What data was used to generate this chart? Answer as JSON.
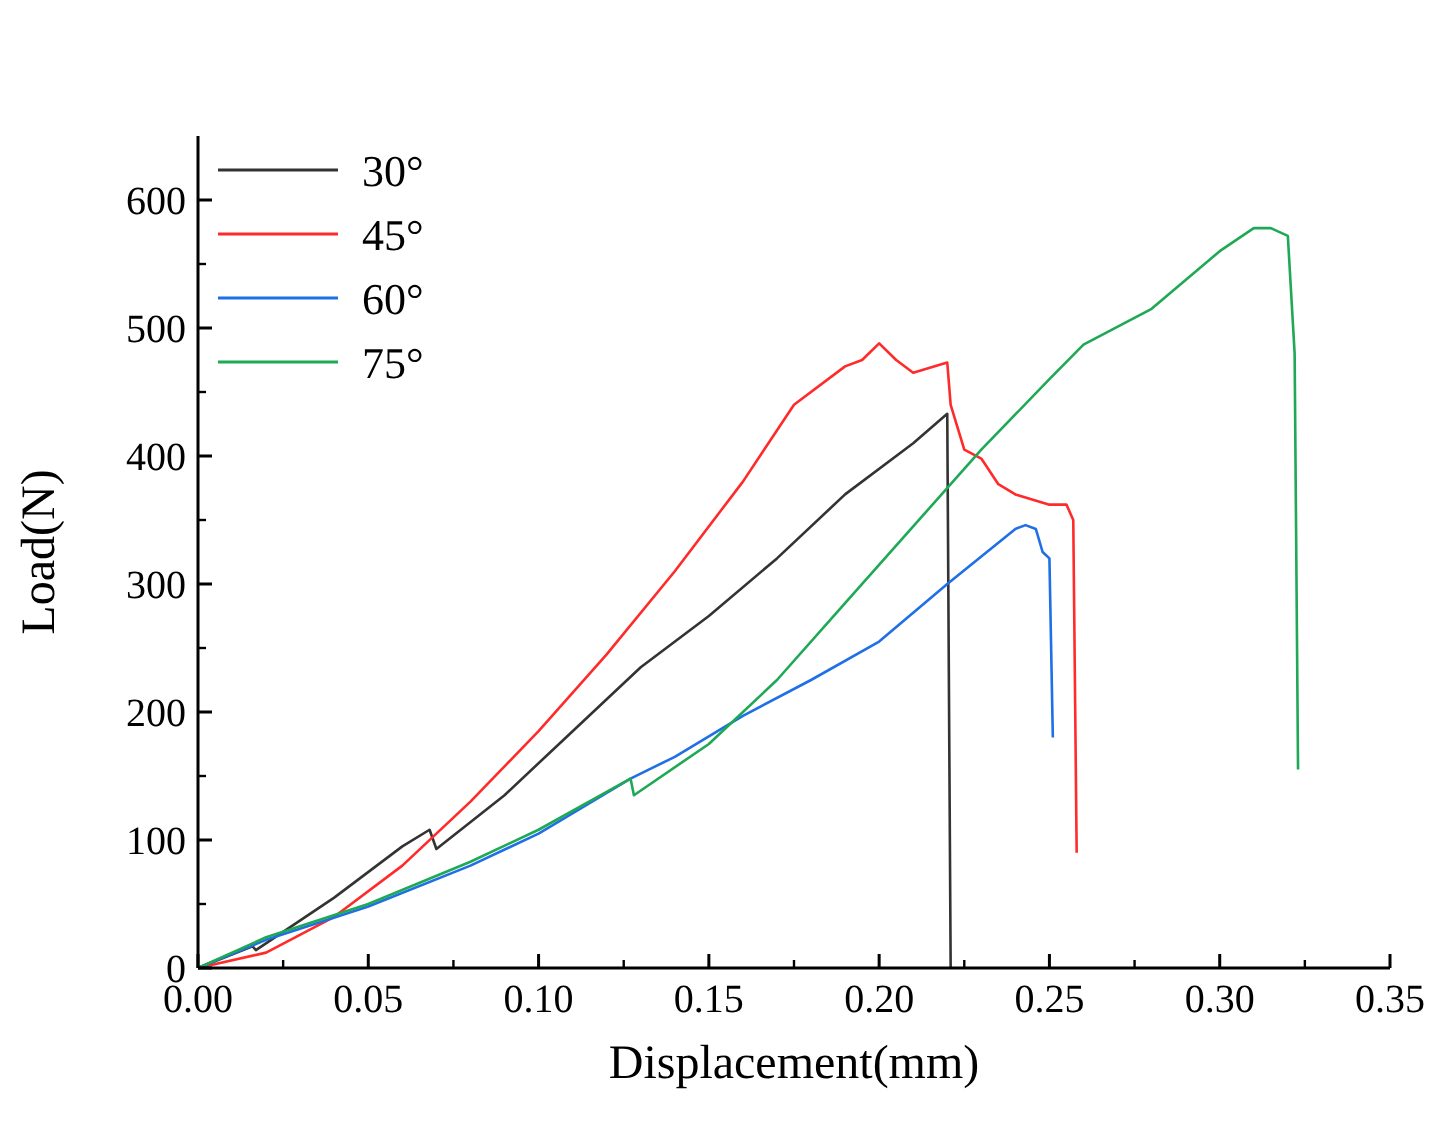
{
  "chart_data": {
    "type": "line",
    "xlabel": "Displacement(mm)",
    "ylabel": "Load(N)",
    "xlim": [
      0,
      0.35
    ],
    "ylim": [
      0,
      650
    ],
    "xticks": [
      {
        "value": 0,
        "label": "0.00"
      },
      {
        "value": 0.05,
        "label": "0.05"
      },
      {
        "value": 0.1,
        "label": "0.10"
      },
      {
        "value": 0.15,
        "label": "0.15"
      },
      {
        "value": 0.2,
        "label": "0.20"
      },
      {
        "value": 0.25,
        "label": "0.25"
      },
      {
        "value": 0.3,
        "label": "0.30"
      },
      {
        "value": 0.35,
        "label": "0.35"
      }
    ],
    "yticks": [
      0,
      100,
      200,
      300,
      400,
      500,
      600
    ],
    "grid": false,
    "legend": "top left",
    "marker": "none",
    "line_style": "solid",
    "series": [
      {
        "name": "30°",
        "color": "#333333",
        "x": [
          0,
          0.016,
          0.017,
          0.04,
          0.06,
          0.068,
          0.07,
          0.09,
          0.11,
          0.13,
          0.15,
          0.17,
          0.19,
          0.21,
          0.22,
          0.221
        ],
        "values": [
          0,
          17,
          14,
          55,
          95,
          108,
          93,
          135,
          185,
          235,
          275,
          320,
          370,
          410,
          433,
          0
        ]
      },
      {
        "name": "45°",
        "color": "#ff2a2a",
        "x": [
          0,
          0.02,
          0.04,
          0.06,
          0.08,
          0.1,
          0.12,
          0.14,
          0.16,
          0.175,
          0.19,
          0.195,
          0.2,
          0.205,
          0.21,
          0.22,
          0.221,
          0.225,
          0.23,
          0.235,
          0.24,
          0.25,
          0.255,
          0.257,
          0.258
        ],
        "values": [
          0,
          12,
          40,
          80,
          130,
          185,
          245,
          310,
          380,
          440,
          470,
          475,
          488,
          475,
          465,
          473,
          440,
          405,
          398,
          378,
          370,
          362,
          362,
          350,
          90
        ]
      },
      {
        "name": "60°",
        "color": "#1f6fe6",
        "x": [
          0,
          0.02,
          0.05,
          0.08,
          0.1,
          0.127,
          0.14,
          0.16,
          0.18,
          0.2,
          0.22,
          0.24,
          0.243,
          0.246,
          0.248,
          0.25,
          0.251
        ],
        "values": [
          0,
          22,
          48,
          80,
          105,
          148,
          165,
          197,
          225,
          255,
          300,
          343,
          346,
          343,
          325,
          320,
          180
        ]
      },
      {
        "name": "75°",
        "color": "#1fa855",
        "x": [
          0,
          0.02,
          0.05,
          0.08,
          0.1,
          0.127,
          0.128,
          0.15,
          0.17,
          0.19,
          0.21,
          0.23,
          0.25,
          0.26,
          0.28,
          0.3,
          0.31,
          0.315,
          0.32,
          0.322,
          0.323
        ],
        "values": [
          0,
          24,
          50,
          83,
          108,
          148,
          135,
          175,
          225,
          285,
          345,
          405,
          460,
          487,
          515,
          560,
          578,
          578,
          572,
          480,
          155
        ]
      }
    ]
  }
}
